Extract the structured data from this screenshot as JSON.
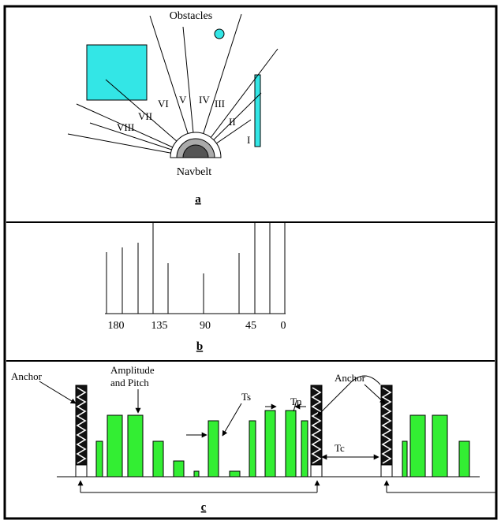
{
  "panel_a": {
    "obstacles_label": "Obstacles",
    "navbelt_label": "Navbelt",
    "caption": "a",
    "sectors": [
      "I",
      "II",
      "III",
      "IV",
      "V",
      "VI",
      "VII",
      "VIII"
    ],
    "colors": {
      "obstacle": "#33e6e6"
    }
  },
  "panel_b": {
    "caption": "b",
    "tick_labels": [
      "180",
      "135",
      "90",
      "45",
      "0"
    ]
  },
  "panel_c": {
    "caption": "c",
    "anchor_label": "Anchor",
    "amplitude_label_line1": "Amplitude",
    "amplitude_label_line2": "and Pitch",
    "ts_label": "Ts",
    "tn_label": "Tn",
    "tc_label": "Tc",
    "colors": {
      "pulse": "#33ee33"
    }
  },
  "chart_data": {
    "type": "bar",
    "categories": [
      "180",
      "135",
      "90",
      "45",
      "0"
    ],
    "xlabel": "",
    "ylabel": "",
    "xlim": [
      180,
      0
    ]
  }
}
